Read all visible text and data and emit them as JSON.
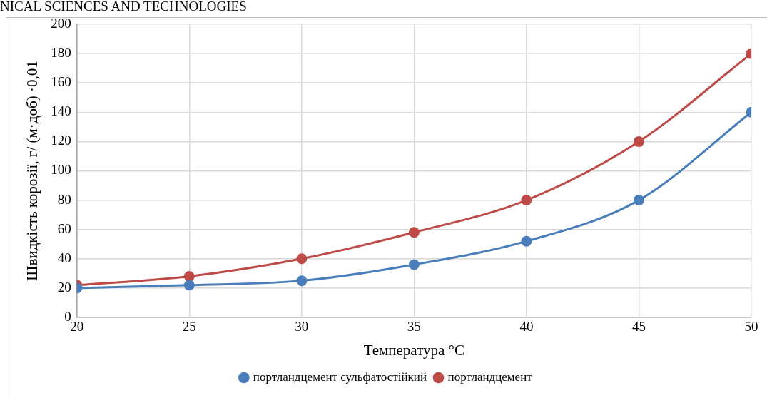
{
  "chart_data": {
    "type": "line",
    "xlabel": "Температура °C",
    "ylabel": "Швидкість корозії, г/ (м·доб) ·0,01",
    "annotations": [
      "NICAL SCIENCES AND TECHNOLOGIES"
    ],
    "x": [
      20,
      25,
      30,
      35,
      40,
      45,
      50
    ],
    "series": [
      {
        "name": "портландцемент сульфатостійкий",
        "color": "#4a7ebb",
        "values": [
          20,
          22,
          25,
          36,
          52,
          80,
          140
        ]
      },
      {
        "name": "портландцемент",
        "color": "#be4b48",
        "values": [
          22,
          28,
          40,
          58,
          80,
          120,
          180
        ]
      }
    ],
    "xlim": [
      20,
      50
    ],
    "xticks": [
      20,
      25,
      30,
      35,
      40,
      45,
      50
    ],
    "ylim": [
      0,
      200
    ],
    "yticks": [
      0,
      20,
      40,
      60,
      80,
      100,
      120,
      140,
      160,
      180,
      200
    ],
    "grid": true,
    "legend": "bottom",
    "marker": "circle",
    "line_style": "solid"
  }
}
